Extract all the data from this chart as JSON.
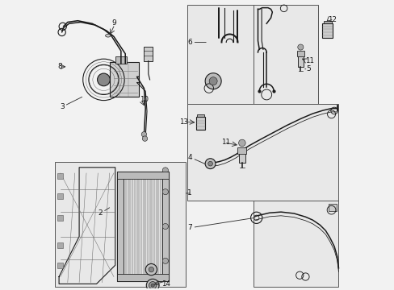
{
  "bg_color": "#f0f0f0",
  "line_color": "#1a1a1a",
  "box_bg": "#e8e8e8",
  "box_edge": "#555555",
  "white": "#ffffff",
  "label_positions": {
    "1": [
      0.495,
      0.435,
      0.46,
      0.435
    ],
    "2": [
      0.155,
      0.27,
      0.19,
      0.29
    ],
    "3": [
      0.03,
      0.595,
      0.07,
      0.595
    ],
    "4": [
      0.495,
      0.495,
      0.53,
      0.495
    ],
    "5": [
      0.885,
      0.72,
      0.865,
      0.72
    ],
    "6": [
      0.495,
      0.84,
      0.53,
      0.84
    ],
    "7": [
      0.495,
      0.195,
      0.535,
      0.22
    ],
    "8": [
      0.02,
      0.745,
      0.055,
      0.745
    ],
    "9": [
      0.215,
      0.9,
      0.19,
      0.875
    ],
    "10": [
      0.295,
      0.64,
      0.285,
      0.625
    ],
    "11a": [
      0.865,
      0.75,
      0.845,
      0.76
    ],
    "11b": [
      0.585,
      0.5,
      0.62,
      0.5
    ],
    "12": [
      0.95,
      0.895,
      0.935,
      0.895
    ],
    "13": [
      0.495,
      0.565,
      0.515,
      0.565
    ],
    "14": [
      0.495,
      0.26,
      0.495,
      0.28
    ]
  }
}
